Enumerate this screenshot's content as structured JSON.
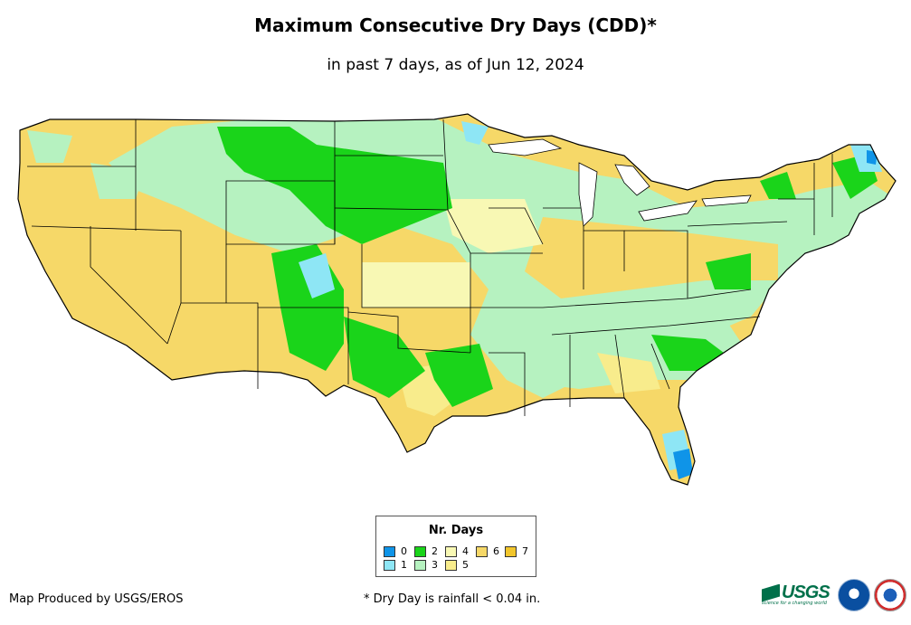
{
  "title": "Maximum Consecutive Dry Days (CDD)*",
  "subtitle": "in past 7 days, as of Jun 12, 2024",
  "legend": {
    "title": "Nr. Days",
    "items": [
      {
        "label": "0",
        "color": "#0f94e8"
      },
      {
        "label": "1",
        "color": "#8ee6f5"
      },
      {
        "label": "2",
        "color": "#1ad41a"
      },
      {
        "label": "3",
        "color": "#b6f2c0"
      },
      {
        "label": "4",
        "color": "#f8f8b4"
      },
      {
        "label": "5",
        "color": "#f8ec8c"
      },
      {
        "label": "6",
        "color": "#f6d868"
      },
      {
        "label": "7",
        "color": "#f2c62c"
      }
    ]
  },
  "footer": {
    "credit": "Map Produced by USGS/EROS",
    "note": "* Dry Day is rainfall < 0.04 in."
  },
  "logos": {
    "usgs": "USGS",
    "usgs_tagline": "science for a changing world"
  }
}
